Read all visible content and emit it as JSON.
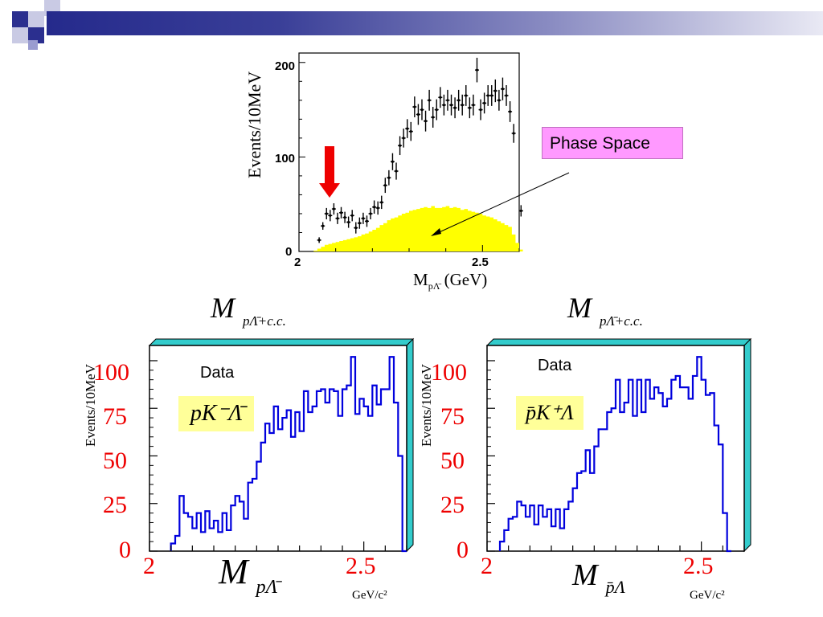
{
  "colors": {
    "slide_bar": "#2b2f8f",
    "data_points": "#000000",
    "phase_space_fill": "#ffff00",
    "highlight_arrow": "#ee0000",
    "histogram_line": "#0000dd",
    "tick_labels": "#ee0000",
    "frame_3d": "#33cccc",
    "callout_bg": "#ff99ff",
    "channel_bg": "#ffff99"
  },
  "callout": {
    "text": "Phase Space"
  },
  "top_mass_labels": {
    "left": {
      "main": "M",
      "sub": "pΛ̄+c.c."
    },
    "right": {
      "main": "M",
      "sub": "pΛ̄+c.c."
    }
  },
  "chart_data": [
    {
      "type": "scatter",
      "ylabel": "Events/10MeV",
      "xlabel_main": "M",
      "xlabel_sub": "pΛ̄",
      "xlabel_unit": "(GeV)",
      "xlim": [
        2.0,
        2.6
      ],
      "ylim": [
        0,
        210
      ],
      "x_ticks": [
        "2",
        "2.5"
      ],
      "y_ticks": [
        "0",
        "100",
        "200"
      ],
      "points": [
        {
          "x": 2.055,
          "y": 12,
          "err": 3
        },
        {
          "x": 2.065,
          "y": 27,
          "err": 4
        },
        {
          "x": 2.075,
          "y": 40,
          "err": 6
        },
        {
          "x": 2.085,
          "y": 38,
          "err": 6
        },
        {
          "x": 2.095,
          "y": 45,
          "err": 6
        },
        {
          "x": 2.105,
          "y": 35,
          "err": 6
        },
        {
          "x": 2.115,
          "y": 41,
          "err": 6
        },
        {
          "x": 2.125,
          "y": 36,
          "err": 6
        },
        {
          "x": 2.135,
          "y": 31,
          "err": 6
        },
        {
          "x": 2.145,
          "y": 38,
          "err": 6
        },
        {
          "x": 2.155,
          "y": 25,
          "err": 6
        },
        {
          "x": 2.165,
          "y": 30,
          "err": 6
        },
        {
          "x": 2.175,
          "y": 35,
          "err": 6
        },
        {
          "x": 2.185,
          "y": 32,
          "err": 6
        },
        {
          "x": 2.195,
          "y": 40,
          "err": 6
        },
        {
          "x": 2.205,
          "y": 47,
          "err": 7
        },
        {
          "x": 2.215,
          "y": 46,
          "err": 7
        },
        {
          "x": 2.225,
          "y": 52,
          "err": 7
        },
        {
          "x": 2.235,
          "y": 70,
          "err": 8
        },
        {
          "x": 2.245,
          "y": 78,
          "err": 8
        },
        {
          "x": 2.255,
          "y": 95,
          "err": 9
        },
        {
          "x": 2.265,
          "y": 85,
          "err": 9
        },
        {
          "x": 2.275,
          "y": 112,
          "err": 10
        },
        {
          "x": 2.285,
          "y": 120,
          "err": 10
        },
        {
          "x": 2.295,
          "y": 130,
          "err": 10
        },
        {
          "x": 2.305,
          "y": 127,
          "err": 10
        },
        {
          "x": 2.315,
          "y": 153,
          "err": 11
        },
        {
          "x": 2.325,
          "y": 145,
          "err": 11
        },
        {
          "x": 2.335,
          "y": 150,
          "err": 11
        },
        {
          "x": 2.345,
          "y": 138,
          "err": 11
        },
        {
          "x": 2.355,
          "y": 160,
          "err": 11
        },
        {
          "x": 2.365,
          "y": 142,
          "err": 11
        },
        {
          "x": 2.375,
          "y": 150,
          "err": 11
        },
        {
          "x": 2.385,
          "y": 163,
          "err": 11
        },
        {
          "x": 2.395,
          "y": 155,
          "err": 11
        },
        {
          "x": 2.405,
          "y": 160,
          "err": 11
        },
        {
          "x": 2.415,
          "y": 155,
          "err": 11
        },
        {
          "x": 2.425,
          "y": 152,
          "err": 11
        },
        {
          "x": 2.435,
          "y": 160,
          "err": 11
        },
        {
          "x": 2.445,
          "y": 155,
          "err": 11
        },
        {
          "x": 2.455,
          "y": 165,
          "err": 11
        },
        {
          "x": 2.465,
          "y": 152,
          "err": 11
        },
        {
          "x": 2.475,
          "y": 155,
          "err": 11
        },
        {
          "x": 2.485,
          "y": 192,
          "err": 13
        },
        {
          "x": 2.495,
          "y": 150,
          "err": 11
        },
        {
          "x": 2.505,
          "y": 157,
          "err": 11
        },
        {
          "x": 2.515,
          "y": 165,
          "err": 11
        },
        {
          "x": 2.525,
          "y": 165,
          "err": 11
        },
        {
          "x": 2.535,
          "y": 170,
          "err": 12
        },
        {
          "x": 2.545,
          "y": 160,
          "err": 11
        },
        {
          "x": 2.555,
          "y": 172,
          "err": 12
        },
        {
          "x": 2.565,
          "y": 165,
          "err": 11
        },
        {
          "x": 2.575,
          "y": 148,
          "err": 11
        },
        {
          "x": 2.585,
          "y": 125,
          "err": 10
        },
        {
          "x": 2.605,
          "y": 43,
          "err": 6
        }
      ],
      "phase_space": {
        "x": [
          2.04,
          2.05,
          2.06,
          2.07,
          2.08,
          2.09,
          2.1,
          2.11,
          2.12,
          2.13,
          2.14,
          2.15,
          2.16,
          2.17,
          2.18,
          2.19,
          2.2,
          2.21,
          2.22,
          2.23,
          2.24,
          2.25,
          2.26,
          2.27,
          2.28,
          2.29,
          2.3,
          2.31,
          2.32,
          2.33,
          2.34,
          2.35,
          2.36,
          2.37,
          2.38,
          2.39,
          2.4,
          2.41,
          2.42,
          2.43,
          2.44,
          2.45,
          2.46,
          2.47,
          2.48,
          2.49,
          2.5,
          2.51,
          2.52,
          2.53,
          2.54,
          2.55,
          2.56,
          2.57,
          2.58,
          2.59,
          2.6
        ],
        "y": [
          1,
          3,
          5,
          7,
          8,
          9,
          10,
          11,
          12,
          13,
          14,
          15,
          16,
          18,
          19,
          21,
          23,
          25,
          28,
          30,
          33,
          35,
          36,
          38,
          40,
          41,
          43,
          44,
          45,
          46,
          47,
          46,
          48,
          46,
          46,
          47,
          48,
          46,
          47,
          46,
          44,
          45,
          43,
          42,
          41,
          40,
          38,
          37,
          36,
          34,
          32,
          30,
          28,
          26,
          18,
          9,
          2
        ]
      },
      "arrow_at_x": 2.095
    },
    {
      "type": "histogram",
      "ylabel": "Events/10MeV",
      "data_label": "Data",
      "channel": "pK⁻Λ̄",
      "xlabel_main": "M",
      "xlabel_sub": "pΛ̄",
      "xlabel_unit": "GeV/c²",
      "xlim": [
        2.0,
        2.6
      ],
      "ylim": [
        0,
        108
      ],
      "x_ticks": [
        "2",
        "2.5"
      ],
      "y_ticks": [
        "0",
        "25",
        "50",
        "75",
        "100"
      ],
      "bin_edges_start": 2.05,
      "bin_width": 0.01,
      "values": [
        4,
        8,
        29,
        20,
        18,
        12,
        20,
        10,
        21,
        12,
        16,
        10,
        20,
        11,
        24,
        29,
        26,
        17,
        36,
        38,
        47,
        57,
        67,
        62,
        76,
        64,
        70,
        74,
        60,
        73,
        63,
        84,
        73,
        76,
        84,
        85,
        78,
        85,
        84,
        71,
        85,
        87,
        102,
        72,
        80,
        76,
        71,
        87,
        77,
        85,
        85,
        102,
        78,
        50,
        0
      ]
    },
    {
      "type": "histogram",
      "ylabel": "Events/10MeV",
      "data_label": "Data",
      "channel": "p̄K⁺Λ",
      "xlabel_main": "M",
      "xlabel_sub": "p̄Λ",
      "xlabel_unit": "GeV/c²",
      "xlim": [
        2.0,
        2.6
      ],
      "ylim": [
        0,
        108
      ],
      "x_ticks": [
        "2",
        "2.5"
      ],
      "y_ticks": [
        "0",
        "25",
        "50",
        "75",
        "100"
      ],
      "bin_edges_start": 2.03,
      "bin_width": 0.01,
      "values": [
        5,
        11,
        17,
        18,
        26,
        24,
        18,
        24,
        14,
        24,
        18,
        22,
        13,
        22,
        12,
        22,
        26,
        33,
        41,
        42,
        53,
        41,
        55,
        64,
        64,
        73,
        75,
        90,
        73,
        78,
        90,
        71,
        90,
        73,
        90,
        80,
        86,
        83,
        76,
        80,
        90,
        92,
        86,
        86,
        80,
        92,
        102,
        90,
        82,
        83,
        66,
        56,
        20,
        0
      ]
    }
  ]
}
